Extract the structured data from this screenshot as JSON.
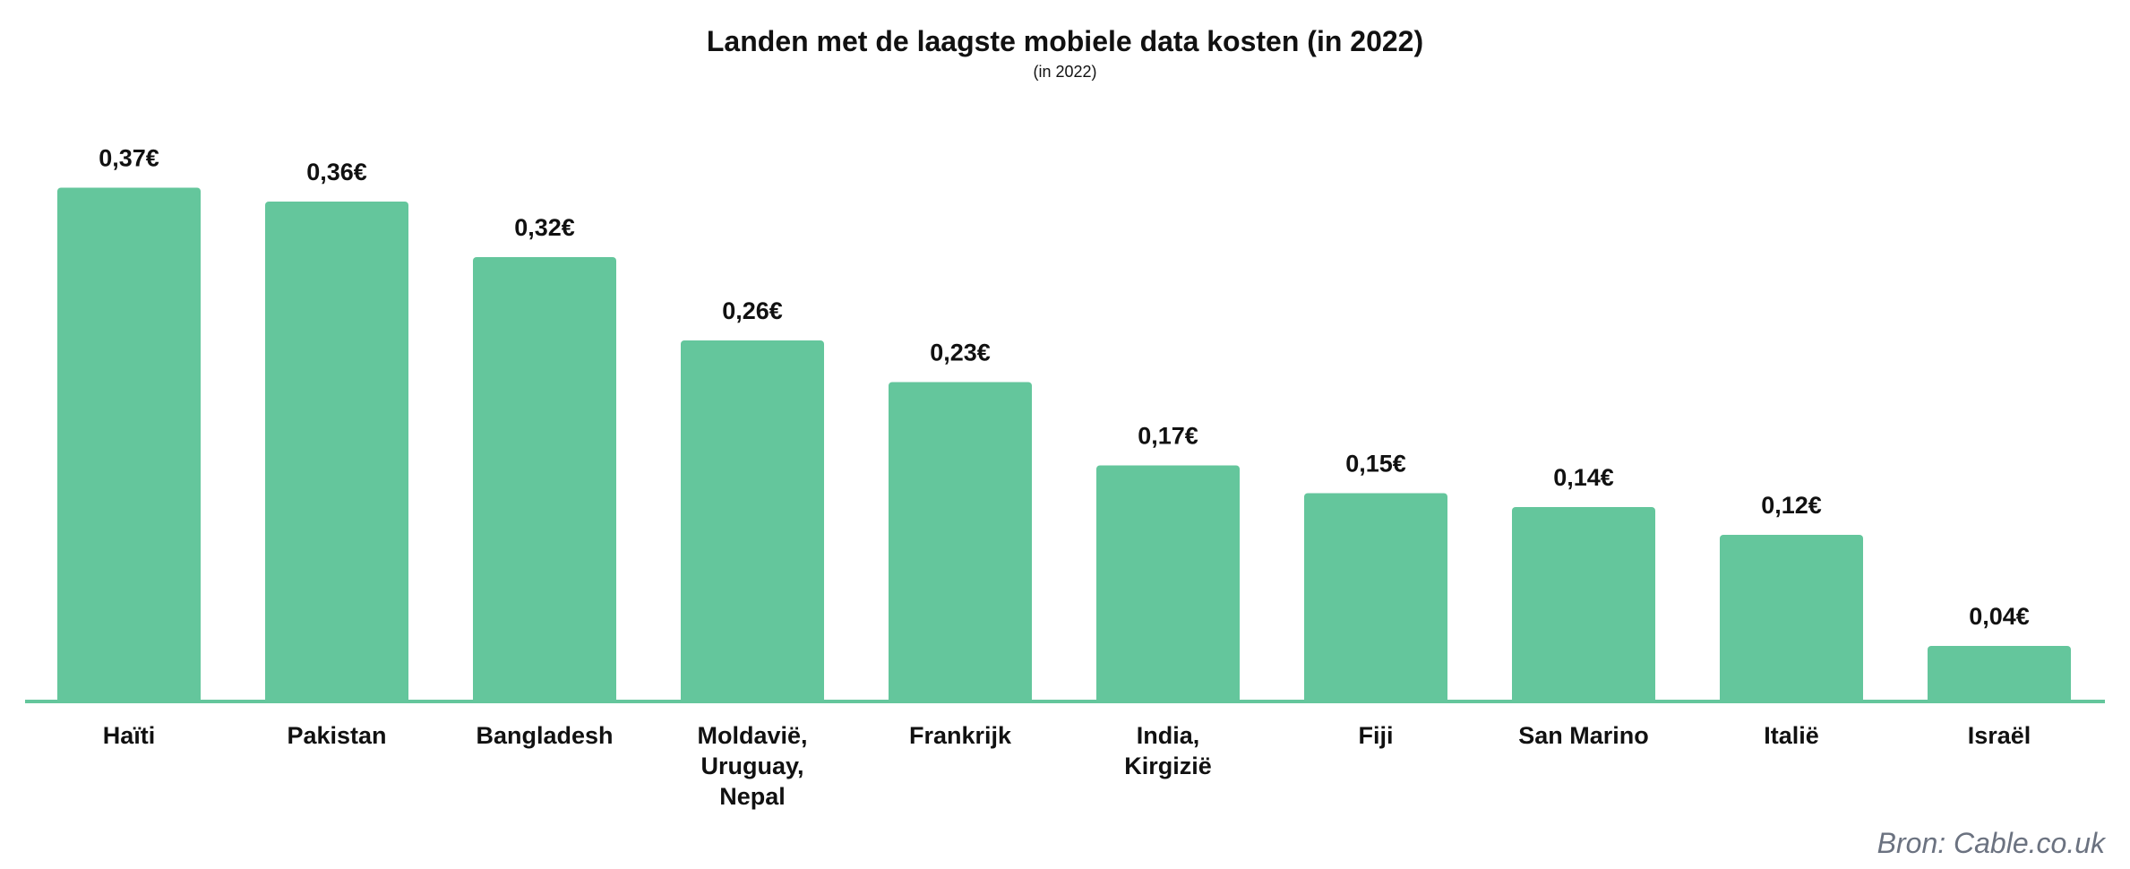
{
  "chart_data": {
    "type": "bar",
    "title": "Landen met de laagste mobiele data kosten (in 2022)",
    "subtitle": "(in 2022)",
    "categories": [
      [
        "Haïti"
      ],
      [
        "Pakistan"
      ],
      [
        "Bangladesh"
      ],
      [
        "Moldavië,",
        "Uruguay,",
        "Nepal"
      ],
      [
        "Frankrijk"
      ],
      [
        "India,",
        "Kirgizië"
      ],
      [
        "Fiji"
      ],
      [
        "San Marino"
      ],
      [
        "Italië"
      ],
      [
        "Israël"
      ]
    ],
    "values": [
      0.37,
      0.36,
      0.32,
      0.26,
      0.23,
      0.17,
      0.15,
      0.14,
      0.12,
      0.04
    ],
    "value_labels": [
      "0,37€",
      "0,36€",
      "0,32€",
      "0,26€",
      "0,23€",
      "0,17€",
      "0,15€",
      "0,14€",
      "0,12€",
      "0,04€"
    ],
    "xlabel": "",
    "ylabel": "",
    "ylim": [
      0,
      0.4
    ],
    "grid": false,
    "legend": "none",
    "bar_color": "#64c69c",
    "axis_color": "#64c69c",
    "source": "Bron: Cable.co.uk"
  }
}
